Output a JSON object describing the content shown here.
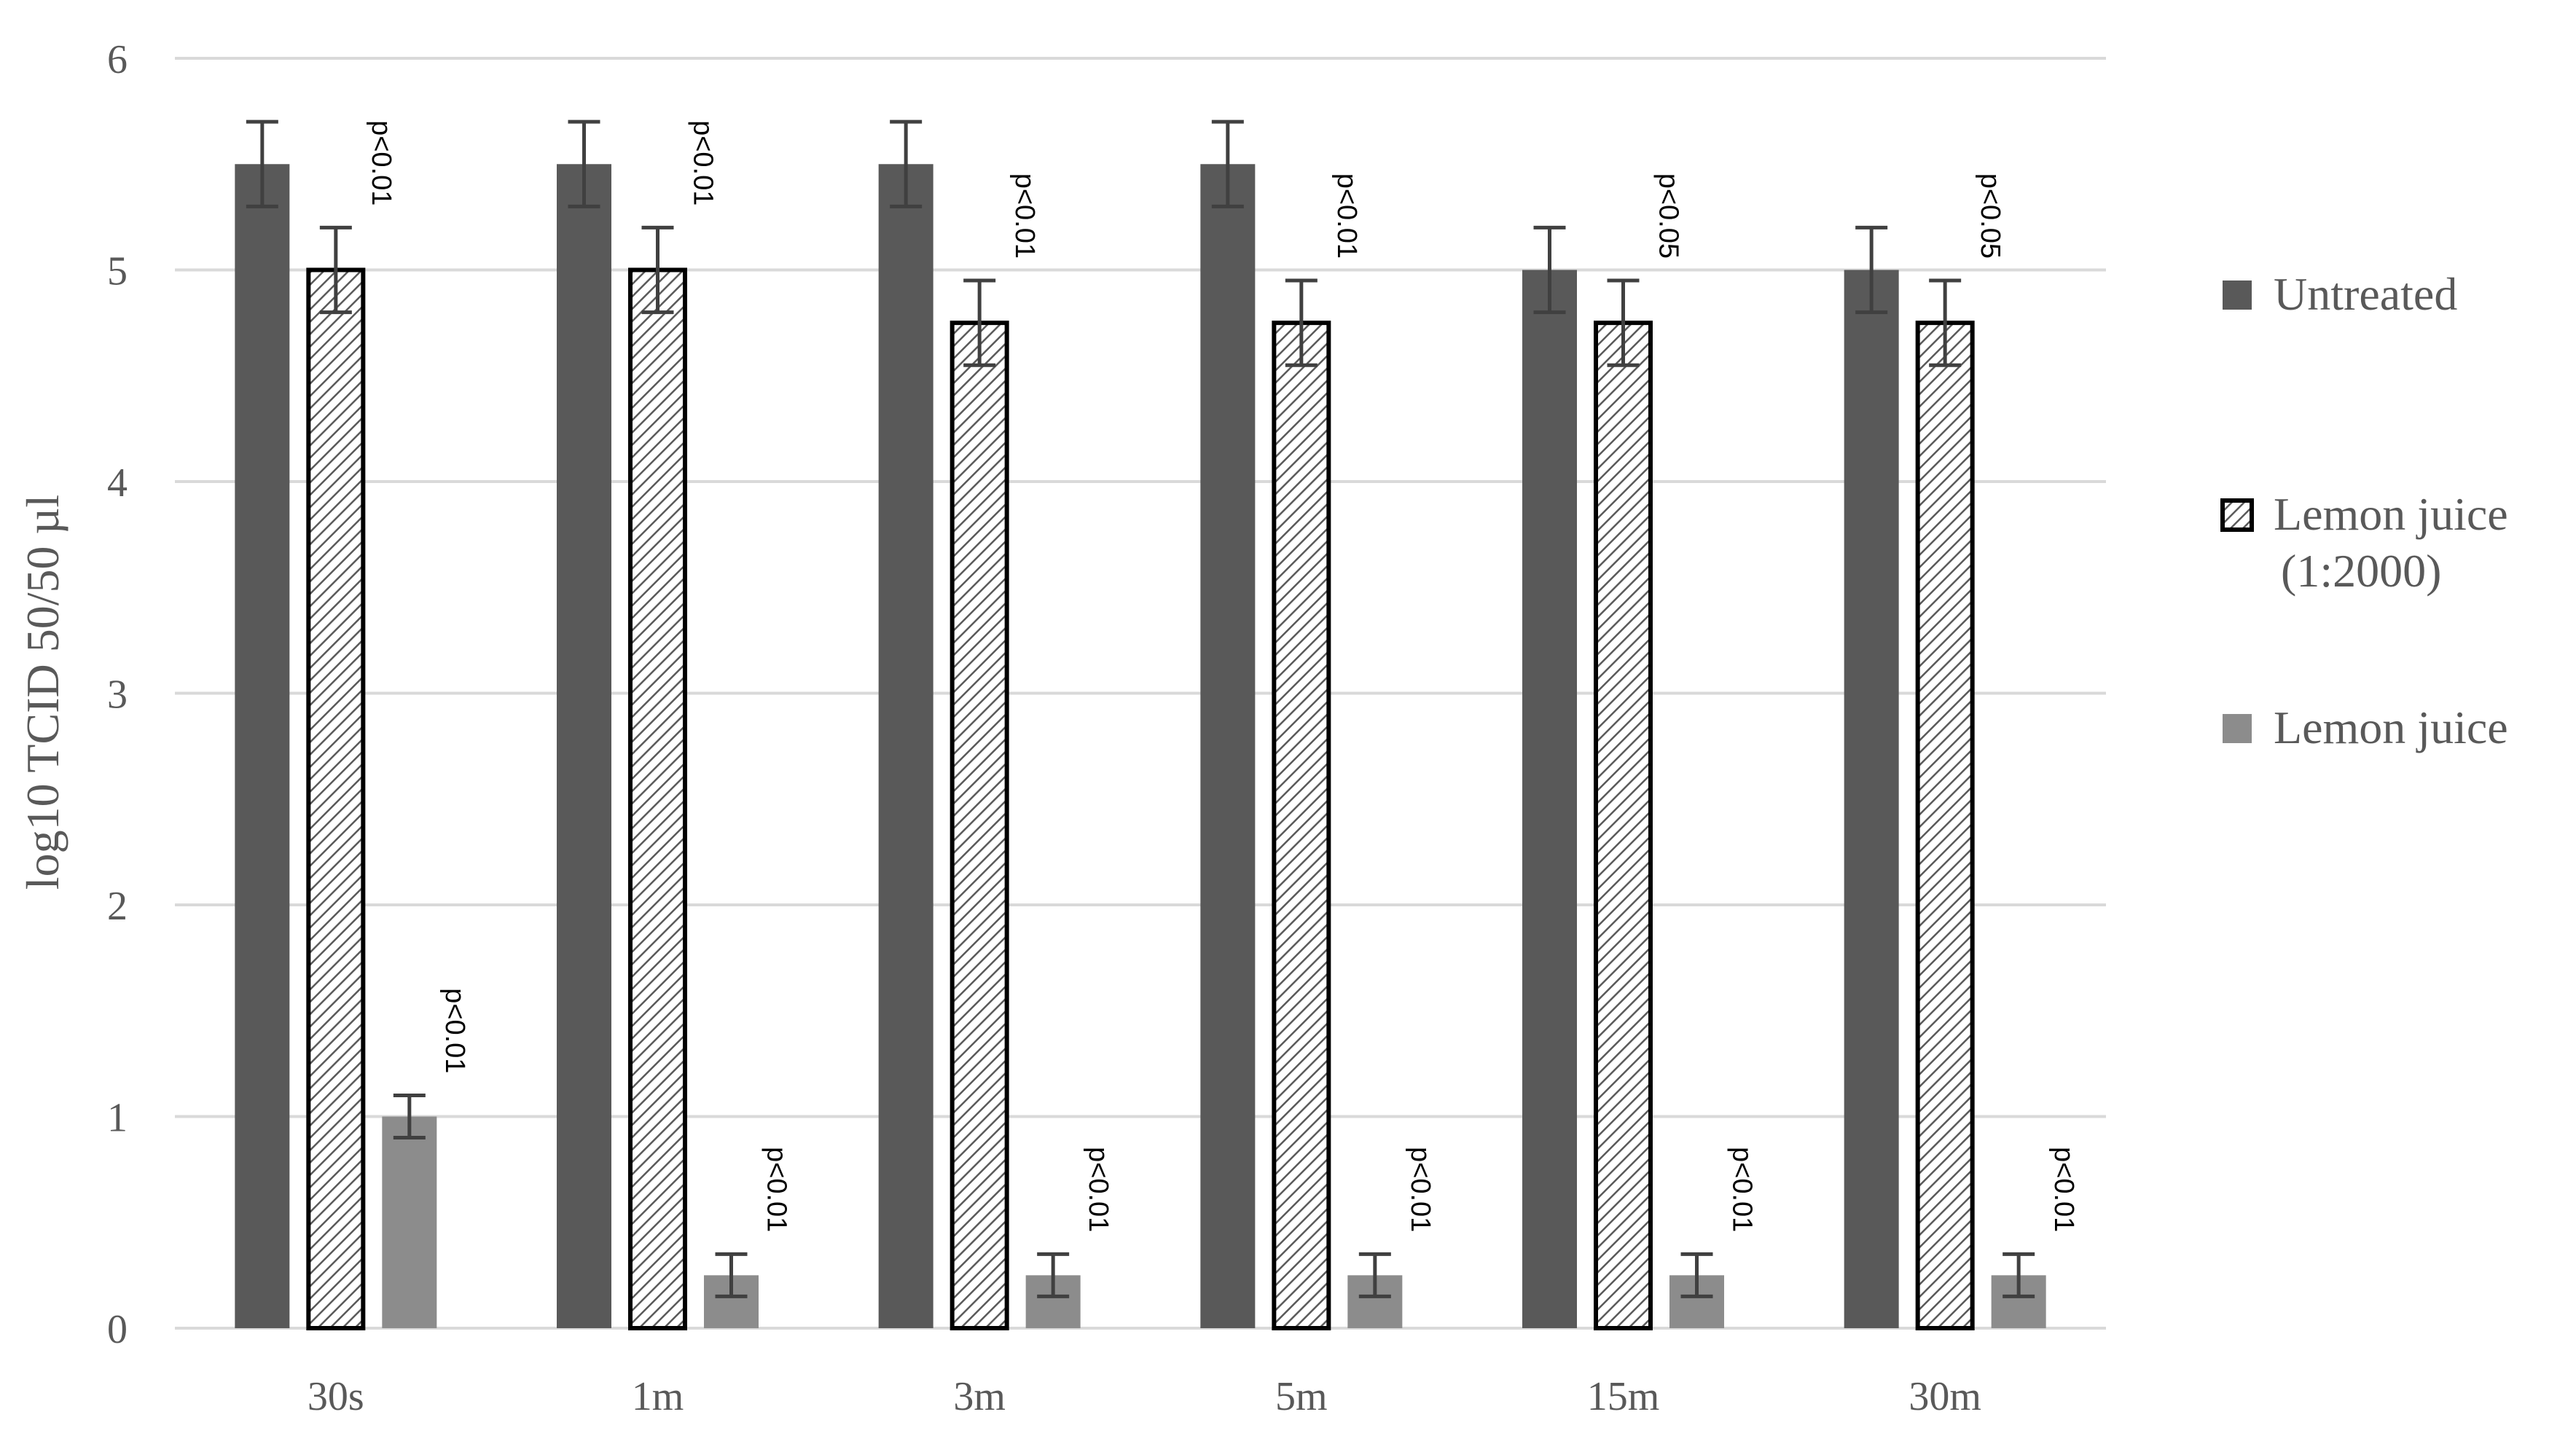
{
  "chart_data": {
    "type": "bar",
    "title": "",
    "xlabel": "",
    "ylabel": "log10 TCID 50/50 µl",
    "ylim": [
      0,
      6
    ],
    "yticks": [
      0,
      1,
      2,
      3,
      4,
      5,
      6
    ],
    "grid": true,
    "legend_position": "right",
    "categories": [
      "30s",
      "1m",
      "3m",
      "5m",
      "15m",
      "30m"
    ],
    "series": [
      {
        "name": "Untreated",
        "color": "#595959",
        "pattern": "solid",
        "values": [
          5.5,
          5.5,
          5.5,
          5.5,
          5.0,
          5.0
        ],
        "errors": [
          0.2,
          0.2,
          0.2,
          0.2,
          0.2,
          0.2
        ],
        "annotations": [
          "",
          "",
          "",
          "",
          "",
          ""
        ]
      },
      {
        "name": "Lemon juice (1:2000)",
        "legend_lines": [
          "Lemon juice",
          "(1:2000)"
        ],
        "color": "#000000",
        "pattern": "hatch",
        "values": [
          5.0,
          5.0,
          4.75,
          4.75,
          4.75,
          4.75
        ],
        "errors": [
          0.2,
          0.2,
          0.2,
          0.2,
          0.2,
          0.2
        ],
        "annotations": [
          "p<0.01",
          "p<0.01",
          "p<0.01",
          "p<0.01",
          "p<0.05",
          "p<0.05"
        ]
      },
      {
        "name": "Lemon juice",
        "color": "#8c8c8c",
        "pattern": "solid",
        "values": [
          1.0,
          0.25,
          0.25,
          0.25,
          0.25,
          0.25
        ],
        "errors": [
          0.1,
          0.1,
          0.1,
          0.1,
          0.1,
          0.1
        ],
        "annotations": [
          "p<0.01",
          "p<0.01",
          "p<0.01",
          "p<0.01",
          "p<0.01",
          "p<0.01"
        ]
      }
    ]
  }
}
